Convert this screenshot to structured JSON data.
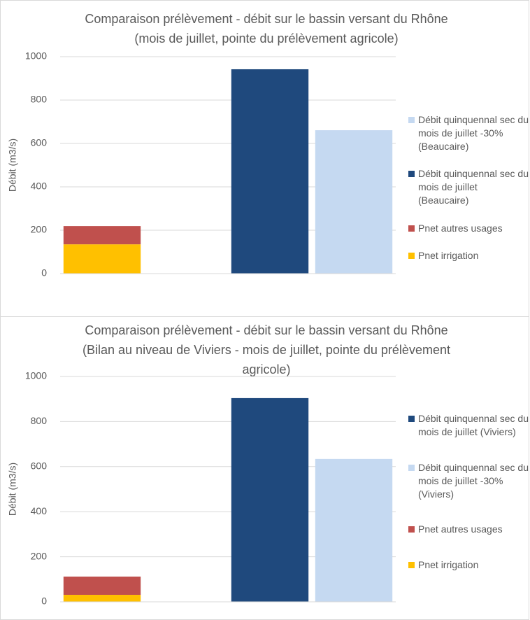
{
  "chart_data": [
    {
      "type": "bar",
      "stacked": true,
      "title": [
        "Comparaison prélèvement - débit sur le bassin versant du Rhône",
        "(mois de juillet, pointe du prélèvement agricole)"
      ],
      "ylabel": "Débit (m3/s)",
      "categories": [
        null,
        null,
        null,
        null
      ],
      "ylim": [
        0,
        1000
      ],
      "yticks": [
        0,
        200,
        400,
        600,
        800,
        1000
      ],
      "grid": true,
      "series": [
        {
          "name": "Pnet irrigation",
          "color": "#FFC000",
          "values": [
            135,
            null,
            null,
            null
          ]
        },
        {
          "name": "Pnet autres usages",
          "color": "#C0504D",
          "values": [
            84,
            null,
            null,
            null
          ]
        },
        {
          "name": "Débit quinquennal sec du mois de juillet (Beaucaire)",
          "color": "#1F497D",
          "values": [
            null,
            null,
            942,
            null
          ]
        },
        {
          "name": "Débit quinquennal sec du mois de juillet -30% (Beaucaire)",
          "color": "#C5D9F1",
          "values": [
            null,
            null,
            null,
            661
          ]
        }
      ]
    },
    {
      "type": "bar",
      "stacked": true,
      "title": [
        "Comparaison prélèvement - débit sur le bassin versant du Rhône",
        "(Bilan au niveau de Viviers - mois de juillet, pointe du prélèvement",
        "agricole)"
      ],
      "ylabel": "Débit (m3/s)",
      "categories": [
        null,
        null,
        null,
        null
      ],
      "ylim": [
        0,
        1000
      ],
      "yticks": [
        0,
        200,
        400,
        600,
        800,
        1000
      ],
      "grid": true,
      "series": [
        {
          "name": "Pnet irrigation",
          "color": "#FFC000",
          "values": [
            31,
            null,
            null,
            null
          ]
        },
        {
          "name": "Pnet autres usages",
          "color": "#C0504D",
          "values": [
            81,
            null,
            null,
            null
          ]
        },
        {
          "name": "Débit quinquennal sec du mois de juillet -30% (Viviers)",
          "color": "#C5D9F1",
          "values": [
            null,
            null,
            null,
            634
          ]
        },
        {
          "name": "Débit quinquennal sec du mois de juillet (Viviers)",
          "color": "#1F497D",
          "values": [
            null,
            null,
            904,
            null
          ]
        }
      ]
    }
  ]
}
